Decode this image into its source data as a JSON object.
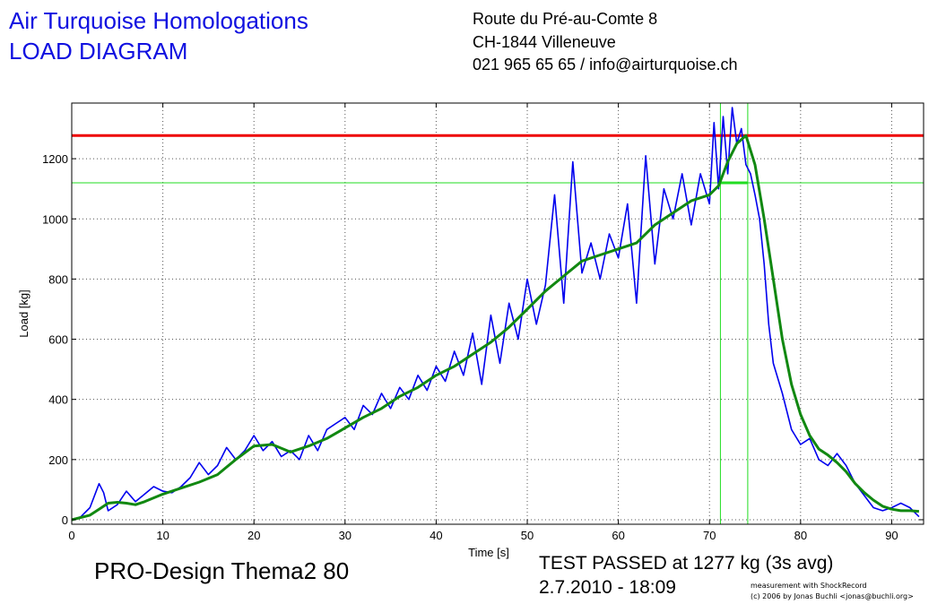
{
  "header": {
    "company": "Air Turquoise Homologations",
    "diagram_title": "LOAD DIAGRAM",
    "address_line1": "Route du Pré-au-Comte 8",
    "address_line2": "CH-1844 Villeneuve",
    "contact": "021 965 65 65 / info@airturquoise.ch"
  },
  "footer": {
    "model": "PRO-Design Thema2 80",
    "result": "TEST PASSED at 1277 kg (3s avg)",
    "datetime": "2.7.2010 - 18:09",
    "credit_line1": "measurement with ShockRecord",
    "credit_line2": "(c) 2006 by Jonas Buchli <jonas@buchli.org>"
  },
  "colors": {
    "raw": "#0000ee",
    "avg": "#118811",
    "limit": "#ee0000",
    "marker": "#22dd22",
    "grid": "#555555"
  },
  "chart_data": {
    "type": "line",
    "xlabel": "Time [s]",
    "ylabel": "Load [kg]",
    "xlim": [
      0,
      93.5
    ],
    "ylim": [
      -15,
      1385
    ],
    "xticks": [
      0,
      10,
      20,
      30,
      40,
      50,
      60,
      70,
      80,
      90
    ],
    "yticks": [
      0,
      200,
      400,
      600,
      800,
      1000,
      1200
    ],
    "grid": true,
    "reference_lines": {
      "max_load_kg": 1277,
      "threshold_kg": 1120,
      "window_start_s": 71.2,
      "window_end_s": 74.2
    },
    "series": [
      {
        "key": "raw",
        "x": [
          0,
          1,
          2,
          3,
          3.5,
          4,
          5,
          6,
          7,
          8,
          9,
          10,
          11,
          12,
          13,
          14,
          15,
          16,
          17,
          18,
          19,
          20,
          21,
          22,
          23,
          24,
          25,
          26,
          27,
          28,
          29,
          30,
          31,
          32,
          33,
          34,
          35,
          36,
          37,
          38,
          39,
          40,
          41,
          42,
          43,
          44,
          45,
          46,
          47,
          48,
          49,
          50,
          51,
          52,
          53,
          54,
          55,
          56,
          57,
          58,
          59,
          60,
          61,
          62,
          63,
          64,
          65,
          66,
          67,
          68,
          69,
          70,
          70.5,
          71,
          71.5,
          72,
          72.5,
          73,
          73.5,
          74,
          74.5,
          75,
          75.5,
          76,
          76.5,
          77,
          78,
          79,
          80,
          81,
          82,
          83,
          84,
          85,
          86,
          87,
          88,
          89,
          90,
          91,
          92,
          93
        ],
        "y": [
          0,
          10,
          40,
          120,
          90,
          30,
          50,
          95,
          60,
          85,
          110,
          95,
          90,
          110,
          140,
          190,
          150,
          180,
          240,
          200,
          230,
          280,
          230,
          260,
          210,
          230,
          200,
          280,
          230,
          300,
          320,
          340,
          300,
          380,
          350,
          420,
          370,
          440,
          400,
          480,
          430,
          510,
          460,
          560,
          480,
          620,
          450,
          680,
          520,
          720,
          600,
          800,
          650,
          780,
          1080,
          720,
          1190,
          820,
          920,
          800,
          950,
          870,
          1050,
          720,
          1210,
          850,
          1100,
          1000,
          1150,
          980,
          1150,
          1050,
          1320,
          1100,
          1340,
          1150,
          1370,
          1250,
          1300,
          1180,
          1150,
          1080,
          1000,
          850,
          650,
          520,
          420,
          300,
          250,
          270,
          200,
          180,
          220,
          180,
          120,
          80,
          40,
          30,
          40,
          55,
          40,
          10
        ]
      },
      {
        "key": "avg",
        "x": [
          0,
          2,
          3,
          4,
          5,
          6,
          7,
          8,
          10,
          12,
          14,
          16,
          18,
          20,
          22,
          24,
          26,
          28,
          30,
          32,
          34,
          36,
          38,
          40,
          42,
          44,
          46,
          48,
          50,
          52,
          54,
          56,
          58,
          60,
          62,
          64,
          66,
          68,
          70,
          71,
          72,
          73,
          74,
          75,
          76,
          77,
          78,
          79,
          80,
          81,
          82,
          83,
          84,
          85,
          86,
          87,
          88,
          89,
          90,
          91,
          92,
          93
        ],
        "y": [
          0,
          15,
          35,
          55,
          58,
          55,
          50,
          60,
          85,
          105,
          125,
          150,
          200,
          245,
          250,
          225,
          245,
          270,
          305,
          340,
          370,
          410,
          440,
          480,
          510,
          550,
          590,
          640,
          700,
          760,
          810,
          860,
          880,
          900,
          920,
          980,
          1020,
          1060,
          1080,
          1110,
          1190,
          1250,
          1277,
          1180,
          1000,
          800,
          600,
          450,
          350,
          280,
          235,
          215,
          190,
          160,
          120,
          90,
          65,
          45,
          35,
          30,
          30,
          28
        ]
      }
    ]
  }
}
